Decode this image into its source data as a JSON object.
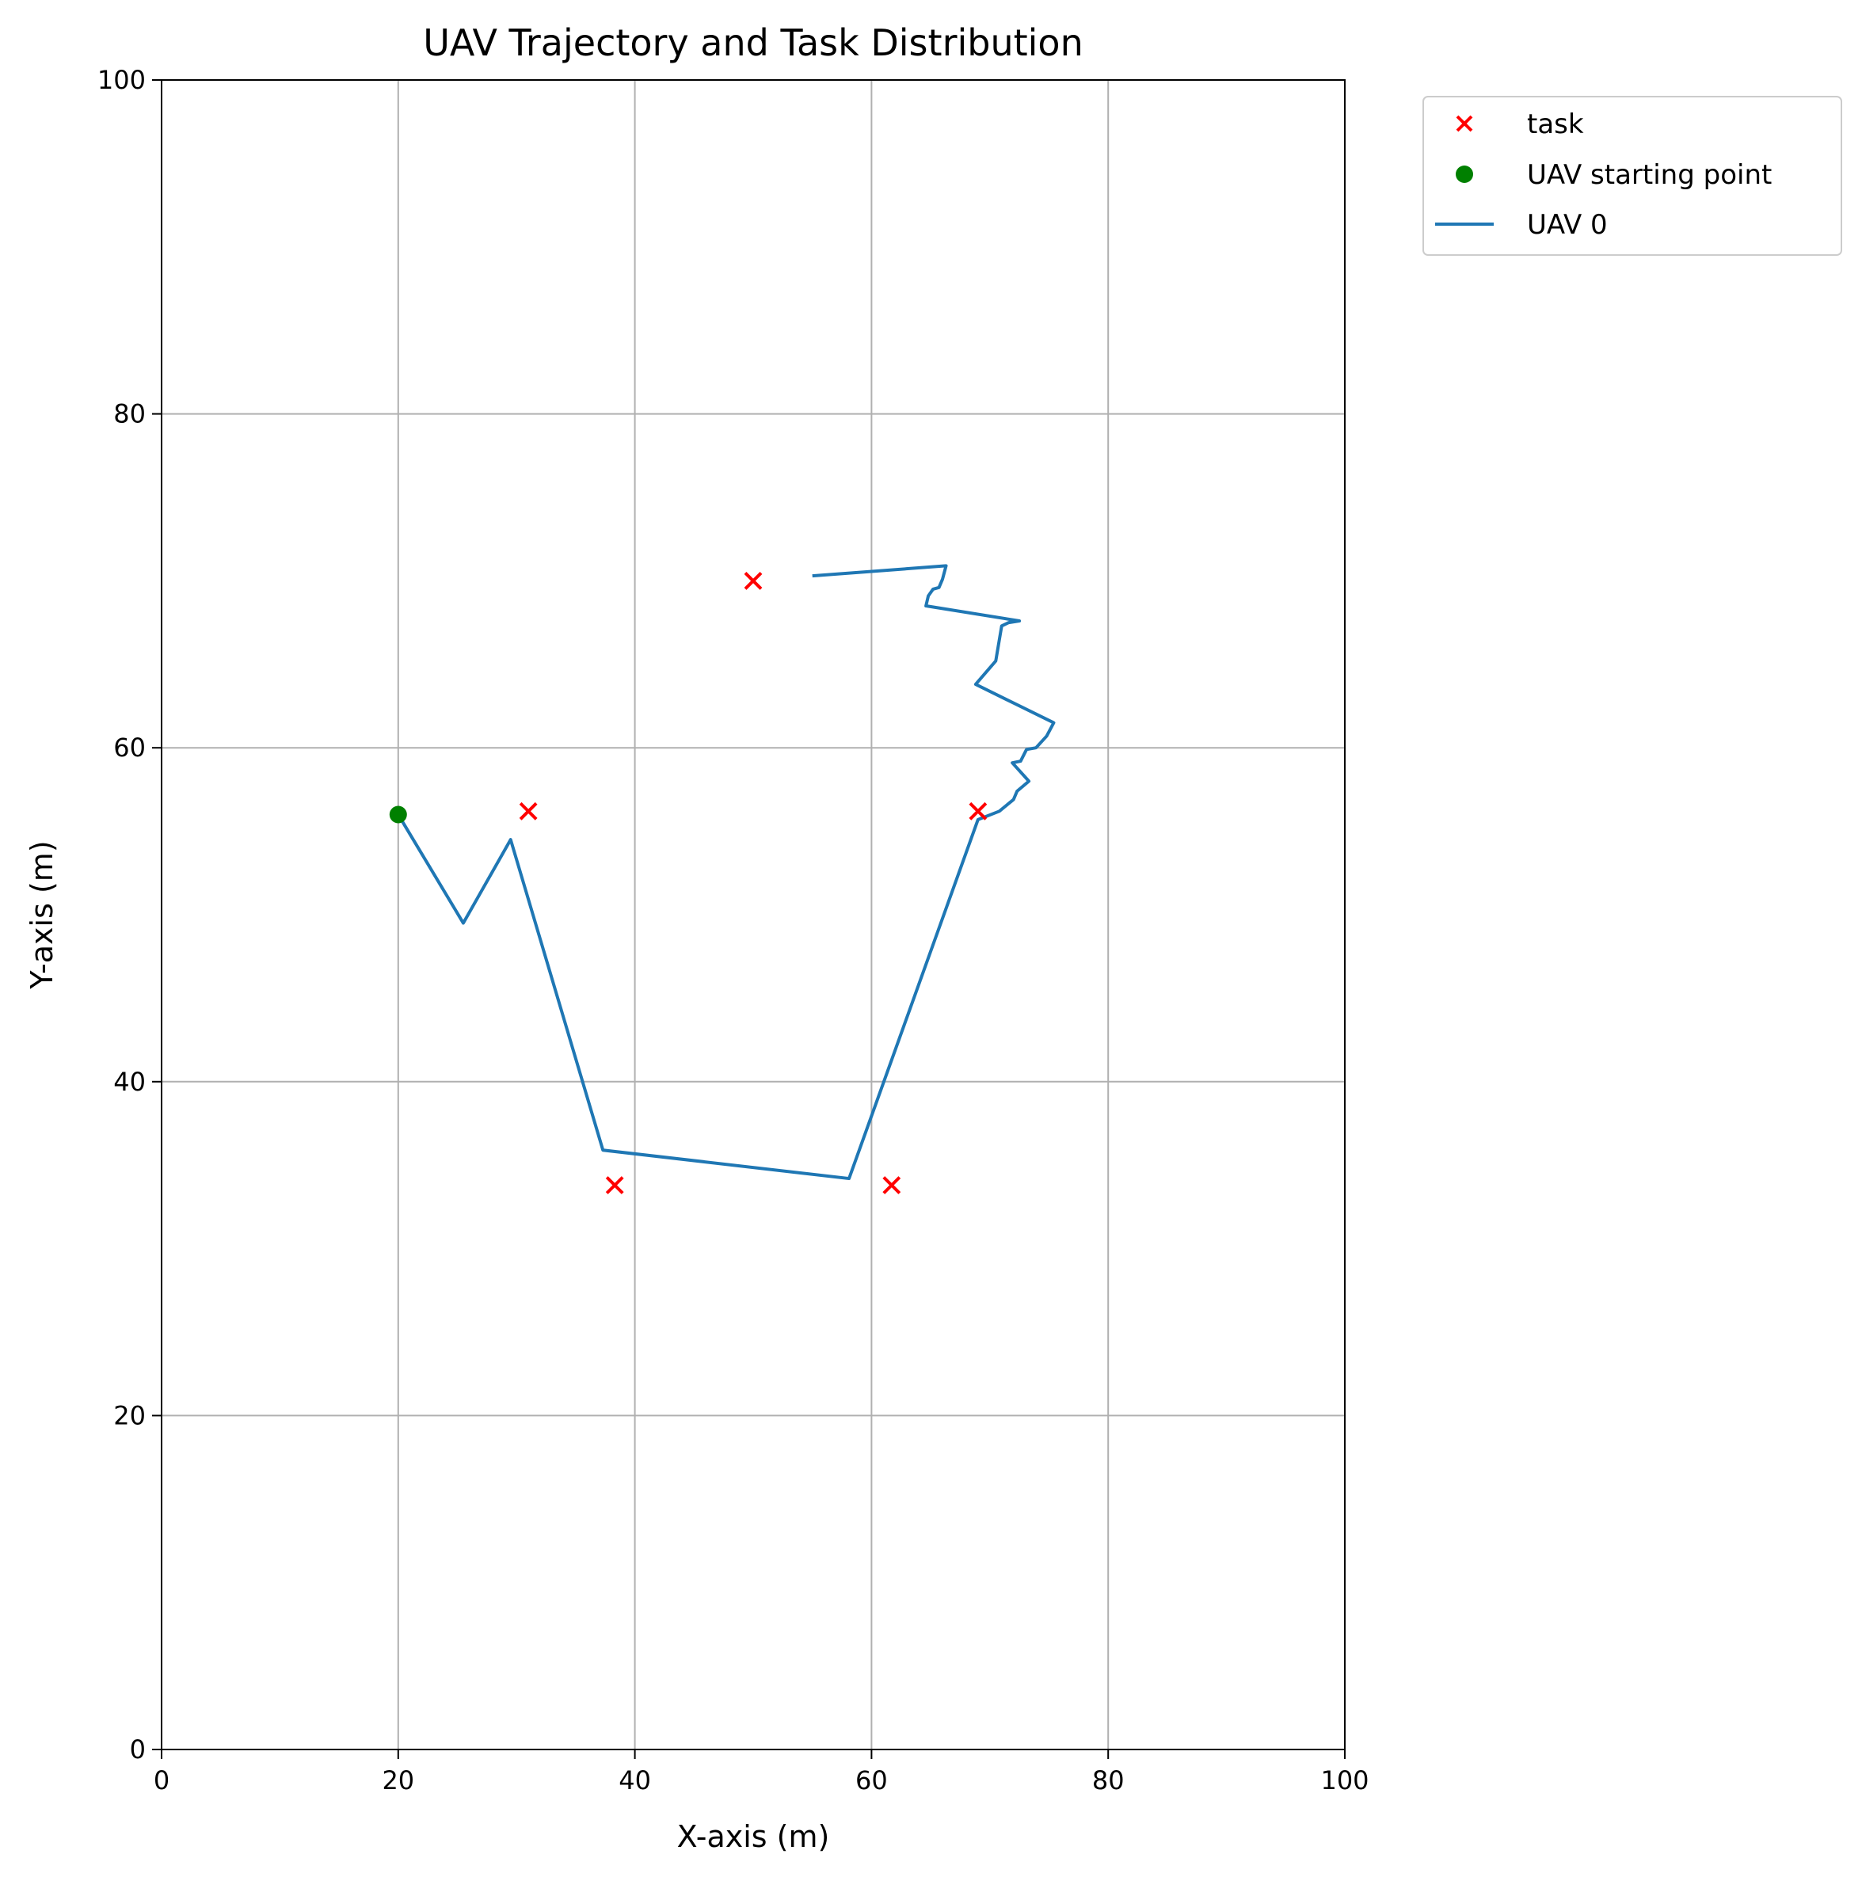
{
  "chart_data": {
    "type": "scatter",
    "title": "UAV Trajectory and Task Distribution",
    "xlabel": "X-axis (m)",
    "ylabel": "Y-axis (m)",
    "xlim": [
      0,
      100
    ],
    "ylim": [
      0,
      100
    ],
    "xticks": [
      "0",
      "20",
      "40",
      "60",
      "80",
      "100"
    ],
    "yticks": [
      "0",
      "20",
      "40",
      "60",
      "80",
      "100"
    ],
    "grid": true,
    "legend_position": "outside-top-right",
    "series": [
      {
        "name": "task",
        "kind": "scatter",
        "marker": "x",
        "color": "#ff0000",
        "points": [
          [
            31,
            56.2
          ],
          [
            38.3,
            33.8
          ],
          [
            50,
            70
          ],
          [
            61.7,
            33.8
          ],
          [
            69,
            56.2
          ]
        ]
      },
      {
        "name": "UAV starting point",
        "kind": "scatter",
        "marker": "circle",
        "color": "#008000",
        "points": [
          [
            20,
            56
          ]
        ]
      },
      {
        "name": "UAV 0",
        "kind": "line",
        "color": "#1f77b4",
        "points": [
          [
            20,
            56
          ],
          [
            25.5,
            49.5
          ],
          [
            29.5,
            54.5
          ],
          [
            37.3,
            35.9
          ],
          [
            58.1,
            34.2
          ],
          [
            69,
            55.7
          ],
          [
            70.8,
            56.2
          ],
          [
            72,
            56.9
          ],
          [
            72.3,
            57.4
          ],
          [
            73.3,
            58.0
          ],
          [
            71.9,
            59.1
          ],
          [
            72.6,
            59.2
          ],
          [
            73.1,
            59.9
          ],
          [
            73.9,
            60.0
          ],
          [
            74.8,
            60.7
          ],
          [
            75.4,
            61.5
          ],
          [
            68.8,
            63.8
          ],
          [
            70.5,
            65.2
          ],
          [
            71,
            67.3
          ],
          [
            71.6,
            67.5
          ],
          [
            72.5,
            67.6
          ],
          [
            64.6,
            68.5
          ],
          [
            64.8,
            69.1
          ],
          [
            65.2,
            69.5
          ],
          [
            65.7,
            69.6
          ],
          [
            66.0,
            70.1
          ],
          [
            66.3,
            70.9
          ],
          [
            55,
            70.3
          ]
        ]
      }
    ]
  }
}
